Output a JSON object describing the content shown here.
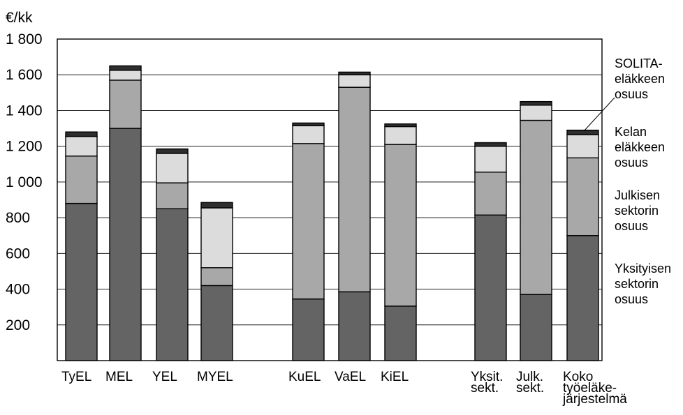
{
  "chart_data": {
    "type": "bar",
    "stacked": true,
    "unit_label": "€/kk",
    "ylim": [
      0,
      1800
    ],
    "yticks": [
      "200",
      "400",
      "600",
      "800",
      "1 000",
      "1 200",
      "1 400",
      "1 600",
      "1 800"
    ],
    "grid": true,
    "legend_position": "right",
    "categories": [
      [
        "TyEL"
      ],
      [
        "MEL"
      ],
      [
        "YEL"
      ],
      [
        "MYEL"
      ],
      [
        "KuEL"
      ],
      [
        "VaEL"
      ],
      [
        "KiEL"
      ],
      [
        "Yksit.",
        "sekt."
      ],
      [
        "Julk.",
        "sekt."
      ],
      [
        "Koko",
        "työeläke-",
        "järjestelmä"
      ]
    ],
    "series": [
      {
        "name": "Yksityisen sektorin osuus",
        "legend_lines": [
          "Yksityisen",
          "sektorin",
          "osuus"
        ],
        "color": "#646464",
        "values": [
          880,
          1300,
          850,
          420,
          345,
          385,
          305,
          815,
          370,
          700
        ]
      },
      {
        "name": "Julkisen sektorin osuus",
        "legend_lines": [
          "Julkisen",
          "sektorin",
          "osuus"
        ],
        "color": "#a8a8a8",
        "values": [
          265,
          270,
          145,
          100,
          870,
          1145,
          905,
          240,
          975,
          435
        ]
      },
      {
        "name": "Kelan eläkkeen osuus",
        "legend_lines": [
          "Kelan",
          "eläkkeen",
          "osuus"
        ],
        "color": "#dcdcdc",
        "values": [
          110,
          55,
          165,
          335,
          100,
          70,
          100,
          145,
          85,
          130
        ]
      },
      {
        "name": "SOLITA-eläkkeen osuus",
        "legend_lines": [
          "SOLITA-",
          "eläkkeen",
          "osuus"
        ],
        "color": "#2e2e2e",
        "values": [
          25,
          25,
          25,
          30,
          15,
          15,
          15,
          20,
          20,
          25
        ]
      }
    ]
  }
}
